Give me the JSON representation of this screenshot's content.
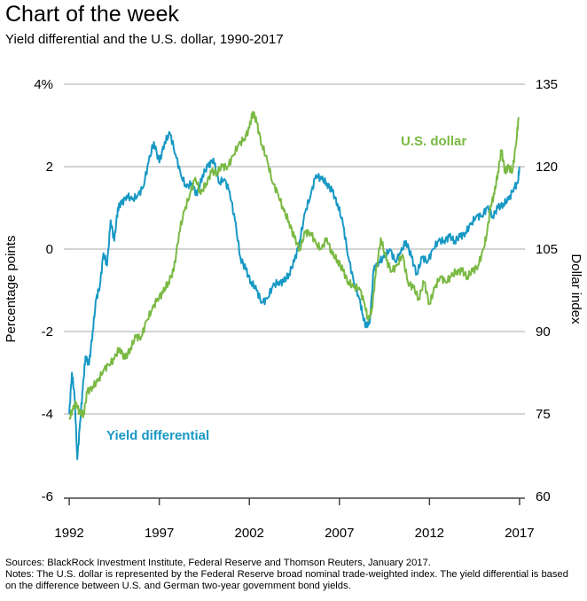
{
  "header": {
    "title": "Chart of the week",
    "subtitle": "Yield differential and the U.S. dollar, 1990-2017"
  },
  "footer": {
    "sources": "Sources: BlackRock Investment Institute, Federal Reserve and Thomson Reuters, January 2017.",
    "notes": "Notes: The U.S. dollar is represented by the Federal Reserve broad nominal trade-weighted index. The yield differential is based on the difference between U.S. and German two-year government bond yields."
  },
  "colors": {
    "yield": "#1798c4",
    "dollar": "#7ab943",
    "grid": "#a8a8a8",
    "axis": "#444444"
  },
  "chart_data": {
    "type": "line",
    "title": "Yield differential and the U.S. dollar, 1990-2017",
    "xlabel": "",
    "ylabel": "Percentage points",
    "y2label": "Dollar index",
    "xlim": [
      1991.7,
      2017.3
    ],
    "ylim": [
      -6,
      4
    ],
    "y2lim": [
      60,
      135
    ],
    "x_ticks": [
      1992,
      1997,
      2002,
      2007,
      2012,
      2017
    ],
    "x_tick_labels": [
      "1992",
      "1997",
      "2002",
      "2007",
      "2012",
      "2017"
    ],
    "y_ticks": [
      -6,
      -4,
      -2,
      0,
      2,
      4
    ],
    "y_tick_labels": [
      "-6",
      "-4",
      "-2",
      "0",
      "2",
      "4%"
    ],
    "y2_ticks": [
      60,
      75,
      90,
      105,
      120,
      135
    ],
    "y2_tick_labels": [
      "60",
      "75",
      "90",
      "105",
      "120",
      "135"
    ],
    "grid": true,
    "series": [
      {
        "name": "Yield differential",
        "label": "Yield differential",
        "axis": "left",
        "x": [
          1992.0,
          1992.15,
          1992.3,
          1992.45,
          1992.6,
          1992.75,
          1992.9,
          1993.1,
          1993.3,
          1993.5,
          1993.7,
          1993.9,
          1994.1,
          1994.3,
          1994.5,
          1994.7,
          1994.9,
          1995.2,
          1995.5,
          1995.8,
          1996.1,
          1996.4,
          1996.7,
          1997.0,
          1997.3,
          1997.6,
          1997.9,
          1998.2,
          1998.5,
          1998.8,
          1999.1,
          1999.4,
          1999.7,
          2000.0,
          2000.3,
          2000.6,
          2000.9,
          2001.2,
          2001.5,
          2001.8,
          2002.1,
          2002.4,
          2002.7,
          2003.0,
          2003.3,
          2003.6,
          2003.9,
          2004.2,
          2004.5,
          2004.8,
          2005.1,
          2005.4,
          2005.7,
          2006.0,
          2006.3,
          2006.6,
          2006.9,
          2007.2,
          2007.5,
          2007.8,
          2008.1,
          2008.3,
          2008.5,
          2008.7,
          2008.9,
          2009.2,
          2009.5,
          2009.8,
          2010.1,
          2010.4,
          2010.7,
          2011.0,
          2011.3,
          2011.6,
          2011.9,
          2012.2,
          2012.5,
          2012.8,
          2013.1,
          2013.4,
          2013.7,
          2014.0,
          2014.3,
          2014.6,
          2014.9,
          2015.2,
          2015.5,
          2015.8,
          2016.1,
          2016.4,
          2016.7,
          2016.9,
          2017.0
        ],
        "values": [
          -4.0,
          -3.0,
          -3.6,
          -5.1,
          -4.2,
          -3.4,
          -2.6,
          -2.8,
          -2.0,
          -1.2,
          -0.9,
          -0.1,
          -0.4,
          0.7,
          0.2,
          1.0,
          1.1,
          1.3,
          1.2,
          1.3,
          1.5,
          2.1,
          2.6,
          2.1,
          2.6,
          2.8,
          2.3,
          1.8,
          1.5,
          1.6,
          1.3,
          1.8,
          2.0,
          2.2,
          1.6,
          1.7,
          1.4,
          0.7,
          -0.2,
          -0.5,
          -0.8,
          -1.0,
          -1.3,
          -1.2,
          -0.9,
          -0.8,
          -0.8,
          -0.6,
          -0.3,
          0.2,
          0.9,
          1.3,
          1.8,
          1.7,
          1.6,
          1.4,
          1.1,
          0.6,
          -0.2,
          -0.8,
          -1.2,
          -1.6,
          -1.9,
          -1.7,
          -0.5,
          -0.3,
          -0.2,
          0.0,
          -0.3,
          -0.1,
          0.2,
          -0.2,
          -0.6,
          -0.2,
          -0.3,
          0.0,
          0.2,
          0.2,
          0.3,
          0.2,
          0.3,
          0.4,
          0.6,
          0.8,
          0.8,
          1.0,
          0.8,
          1.0,
          1.1,
          1.2,
          1.5,
          1.6,
          2.0
        ]
      },
      {
        "name": "U.S. dollar",
        "label": "U.S. dollar",
        "axis": "right",
        "x": [
          1992.0,
          1992.2,
          1992.4,
          1992.6,
          1992.8,
          1993.0,
          1993.3,
          1993.6,
          1993.9,
          1994.2,
          1994.5,
          1994.8,
          1995.1,
          1995.4,
          1995.7,
          1996.0,
          1996.3,
          1996.6,
          1996.9,
          1997.2,
          1997.5,
          1997.8,
          1998.1,
          1998.4,
          1998.7,
          1999.0,
          1999.3,
          1999.6,
          1999.9,
          2000.2,
          2000.5,
          2000.8,
          2001.1,
          2001.4,
          2001.7,
          2002.0,
          2002.2,
          2002.4,
          2002.7,
          2003.0,
          2003.3,
          2003.6,
          2003.9,
          2004.2,
          2004.5,
          2004.8,
          2005.1,
          2005.4,
          2005.7,
          2006.0,
          2006.3,
          2006.6,
          2006.9,
          2007.2,
          2007.5,
          2007.8,
          2008.1,
          2008.4,
          2008.6,
          2008.8,
          2009.0,
          2009.3,
          2009.6,
          2009.9,
          2010.2,
          2010.5,
          2010.8,
          2011.1,
          2011.4,
          2011.7,
          2012.0,
          2012.3,
          2012.6,
          2012.9,
          2013.2,
          2013.5,
          2013.8,
          2014.1,
          2014.4,
          2014.7,
          2015.0,
          2015.2,
          2015.4,
          2015.6,
          2015.8,
          2016.0,
          2016.2,
          2016.4,
          2016.6,
          2016.8,
          2016.95
        ],
        "values": [
          74,
          76,
          77,
          75,
          75,
          79,
          80,
          81,
          83,
          84,
          85,
          87,
          85,
          87,
          89,
          89,
          92,
          94,
          96,
          97,
          99,
          101,
          108,
          112,
          115,
          118,
          115,
          117,
          119,
          119,
          120,
          120,
          122,
          124,
          125,
          127,
          130,
          128,
          124,
          121,
          117,
          115,
          112,
          110,
          107,
          105,
          108,
          108,
          106,
          105,
          107,
          104,
          103,
          101,
          99,
          98,
          98,
          95,
          92,
          94,
          100,
          107,
          103,
          101,
          102,
          104,
          99,
          98,
          96,
          99,
          95,
          98,
          100,
          99,
          100,
          101,
          101,
          100,
          101,
          102,
          105,
          108,
          113,
          115,
          119,
          123,
          119,
          120,
          119,
          124,
          129
        ]
      }
    ]
  }
}
